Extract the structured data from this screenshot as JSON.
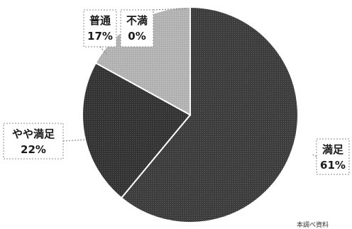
{
  "chart_data": {
    "type": "pie",
    "slices": [
      {
        "name": "満足",
        "value": 61,
        "label": "61%",
        "color": "#3e3e3e"
      },
      {
        "name": "やや満足",
        "value": 22,
        "label": "22%",
        "color": "#353535"
      },
      {
        "name": "普通",
        "value": 17,
        "label": "17%",
        "color": "#b5b5b5"
      },
      {
        "name": "不満",
        "value": 0,
        "label": "0%",
        "color": "#d8d8d8"
      }
    ],
    "start_angle_deg": 0,
    "direction": "clockwise"
  },
  "footer": {
    "text": "本調べ資料"
  }
}
